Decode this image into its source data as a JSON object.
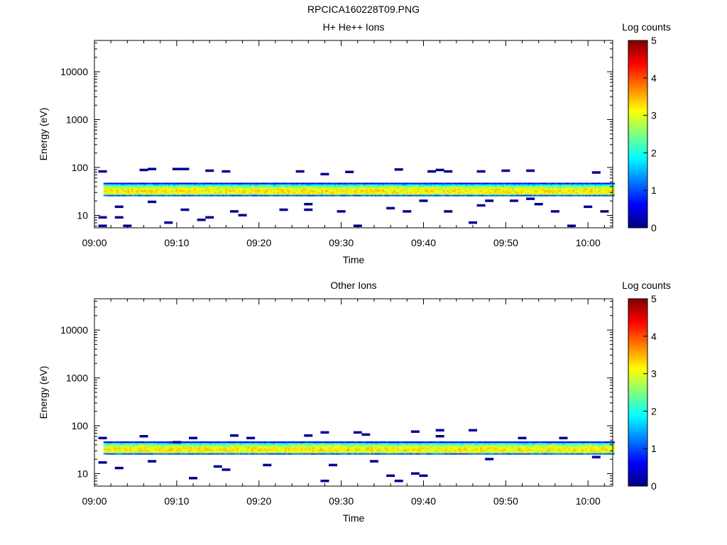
{
  "page": {
    "title": "RPCICA160228T09.PNG"
  },
  "colors": {
    "colormap": [
      "#00007f",
      "#0000ff",
      "#007fff",
      "#00ffff",
      "#7fff7f",
      "#ffff00",
      "#ff7f00",
      "#ff0000",
      "#7f0000"
    ]
  },
  "chart_data": [
    {
      "type": "heatmap",
      "title": "H+ He++ Ions",
      "xlabel": "Time",
      "ylabel": "Energy (eV)",
      "x_range": [
        "09:00",
        "10:03"
      ],
      "x_ticks": [
        "09:00",
        "09:10",
        "09:20",
        "09:30",
        "09:40",
        "09:50",
        "10:00"
      ],
      "y_scale": "log",
      "y_range": [
        5.5,
        45000
      ],
      "y_ticks": [
        10,
        100,
        1000,
        10000
      ],
      "y_tick_labels": [
        "10",
        "100",
        "1000",
        "10000"
      ],
      "colorbar": {
        "label": "Log counts",
        "range": [
          0,
          5
        ],
        "ticks": [
          "0",
          "1",
          "2",
          "3",
          "4",
          "5"
        ]
      },
      "band": {
        "energy_low": 25,
        "energy_high": 48,
        "peak_energy": 32,
        "peak_log_counts": 3.2
      },
      "sparse_points": [
        {
          "t": "09:01",
          "e": 82,
          "c": 0.1
        },
        {
          "t": "09:01",
          "e": 9,
          "c": 0.1
        },
        {
          "t": "09:01",
          "e": 6,
          "c": 0.1
        },
        {
          "t": "09:03",
          "e": 15,
          "c": 0.1
        },
        {
          "t": "09:03",
          "e": 9,
          "c": 0.1
        },
        {
          "t": "09:04",
          "e": 6,
          "c": 0.1
        },
        {
          "t": "09:06",
          "e": 88,
          "c": 0.1
        },
        {
          "t": "09:07",
          "e": 92,
          "c": 0.1
        },
        {
          "t": "09:07",
          "e": 19,
          "c": 0.1
        },
        {
          "t": "09:09",
          "e": 7,
          "c": 0.1
        },
        {
          "t": "09:10",
          "e": 92,
          "c": 0.1
        },
        {
          "t": "09:11",
          "e": 92,
          "c": 0.1
        },
        {
          "t": "09:11",
          "e": 13,
          "c": 0.1
        },
        {
          "t": "09:13",
          "e": 8,
          "c": 0.1
        },
        {
          "t": "09:14",
          "e": 85,
          "c": 0.1
        },
        {
          "t": "09:14",
          "e": 9,
          "c": 0.1
        },
        {
          "t": "09:16",
          "e": 82,
          "c": 0.1
        },
        {
          "t": "09:17",
          "e": 12,
          "c": 0.1
        },
        {
          "t": "09:18",
          "e": 10,
          "c": 0.1
        },
        {
          "t": "09:23",
          "e": 13,
          "c": 0.1
        },
        {
          "t": "09:25",
          "e": 82,
          "c": 0.1
        },
        {
          "t": "09:26",
          "e": 17,
          "c": 0.1
        },
        {
          "t": "09:26",
          "e": 13,
          "c": 0.1
        },
        {
          "t": "09:28",
          "e": 72,
          "c": 0.1
        },
        {
          "t": "09:30",
          "e": 12,
          "c": 0.1
        },
        {
          "t": "09:31",
          "e": 80,
          "c": 0.1
        },
        {
          "t": "09:32",
          "e": 6,
          "c": 0.1
        },
        {
          "t": "09:36",
          "e": 14,
          "c": 0.1
        },
        {
          "t": "09:37",
          "e": 90,
          "c": 0.1
        },
        {
          "t": "09:38",
          "e": 12,
          "c": 0.1
        },
        {
          "t": "09:40",
          "e": 20,
          "c": 0.1
        },
        {
          "t": "09:41",
          "e": 82,
          "c": 0.1
        },
        {
          "t": "09:42",
          "e": 88,
          "c": 0.1
        },
        {
          "t": "09:43",
          "e": 82,
          "c": 0.1
        },
        {
          "t": "09:43",
          "e": 12,
          "c": 0.1
        },
        {
          "t": "09:46",
          "e": 7,
          "c": 0.1
        },
        {
          "t": "09:47",
          "e": 82,
          "c": 0.1
        },
        {
          "t": "09:47",
          "e": 16,
          "c": 0.1
        },
        {
          "t": "09:48",
          "e": 20,
          "c": 0.1
        },
        {
          "t": "09:50",
          "e": 85,
          "c": 0.1
        },
        {
          "t": "09:51",
          "e": 20,
          "c": 0.1
        },
        {
          "t": "09:53",
          "e": 85,
          "c": 0.1
        },
        {
          "t": "09:53",
          "e": 22,
          "c": 0.1
        },
        {
          "t": "09:54",
          "e": 17,
          "c": 0.1
        },
        {
          "t": "09:56",
          "e": 12,
          "c": 0.1
        },
        {
          "t": "09:58",
          "e": 6,
          "c": 0.1
        },
        {
          "t": "10:00",
          "e": 15,
          "c": 0.1
        },
        {
          "t": "10:01",
          "e": 78,
          "c": 0.1
        },
        {
          "t": "10:02",
          "e": 12,
          "c": 0.1
        }
      ]
    },
    {
      "type": "heatmap",
      "title": "Other Ions",
      "xlabel": "Time",
      "ylabel": "Energy (eV)",
      "x_range": [
        "09:00",
        "10:03"
      ],
      "x_ticks": [
        "09:00",
        "09:10",
        "09:20",
        "09:30",
        "09:40",
        "09:50",
        "10:00"
      ],
      "y_scale": "log",
      "y_range": [
        5.5,
        45000
      ],
      "y_ticks": [
        10,
        100,
        1000,
        10000
      ],
      "y_tick_labels": [
        "10",
        "100",
        "1000",
        "10000"
      ],
      "colorbar": {
        "label": "Log counts",
        "range": [
          0,
          5
        ],
        "ticks": [
          "0",
          "1",
          "2",
          "3",
          "4",
          "5"
        ]
      },
      "band": {
        "energy_low": 25,
        "energy_high": 47,
        "peak_energy": 32,
        "peak_log_counts": 3.2
      },
      "sparse_points": [
        {
          "t": "09:01",
          "e": 55,
          "c": 0.1
        },
        {
          "t": "09:01",
          "e": 17,
          "c": 0.1
        },
        {
          "t": "09:03",
          "e": 13,
          "c": 0.1
        },
        {
          "t": "09:06",
          "e": 60,
          "c": 0.1
        },
        {
          "t": "09:07",
          "e": 18,
          "c": 0.1
        },
        {
          "t": "09:10",
          "e": 45,
          "c": 0.1
        },
        {
          "t": "09:12",
          "e": 55,
          "c": 0.1
        },
        {
          "t": "09:12",
          "e": 8,
          "c": 0.1
        },
        {
          "t": "09:15",
          "e": 14,
          "c": 0.1
        },
        {
          "t": "09:16",
          "e": 12,
          "c": 0.1
        },
        {
          "t": "09:17",
          "e": 62,
          "c": 0.1
        },
        {
          "t": "09:19",
          "e": 55,
          "c": 0.1
        },
        {
          "t": "09:21",
          "e": 15,
          "c": 0.1
        },
        {
          "t": "09:26",
          "e": 62,
          "c": 0.1
        },
        {
          "t": "09:28",
          "e": 72,
          "c": 0.1
        },
        {
          "t": "09:28",
          "e": 7,
          "c": 0.1
        },
        {
          "t": "09:29",
          "e": 15,
          "c": 0.1
        },
        {
          "t": "09:32",
          "e": 72,
          "c": 0.1
        },
        {
          "t": "09:33",
          "e": 65,
          "c": 0.1
        },
        {
          "t": "09:34",
          "e": 18,
          "c": 0.1
        },
        {
          "t": "09:36",
          "e": 9,
          "c": 0.1
        },
        {
          "t": "09:37",
          "e": 7,
          "c": 0.1
        },
        {
          "t": "09:39",
          "e": 75,
          "c": 0.1
        },
        {
          "t": "09:39",
          "e": 10,
          "c": 0.1
        },
        {
          "t": "09:40",
          "e": 9,
          "c": 0.1
        },
        {
          "t": "09:42",
          "e": 80,
          "c": 0.1
        },
        {
          "t": "09:42",
          "e": 60,
          "c": 0.1
        },
        {
          "t": "09:46",
          "e": 80,
          "c": 0.1
        },
        {
          "t": "09:48",
          "e": 20,
          "c": 0.1
        },
        {
          "t": "09:52",
          "e": 55,
          "c": 0.1
        },
        {
          "t": "09:57",
          "e": 55,
          "c": 0.1
        },
        {
          "t": "10:01",
          "e": 22,
          "c": 0.1
        }
      ]
    }
  ]
}
